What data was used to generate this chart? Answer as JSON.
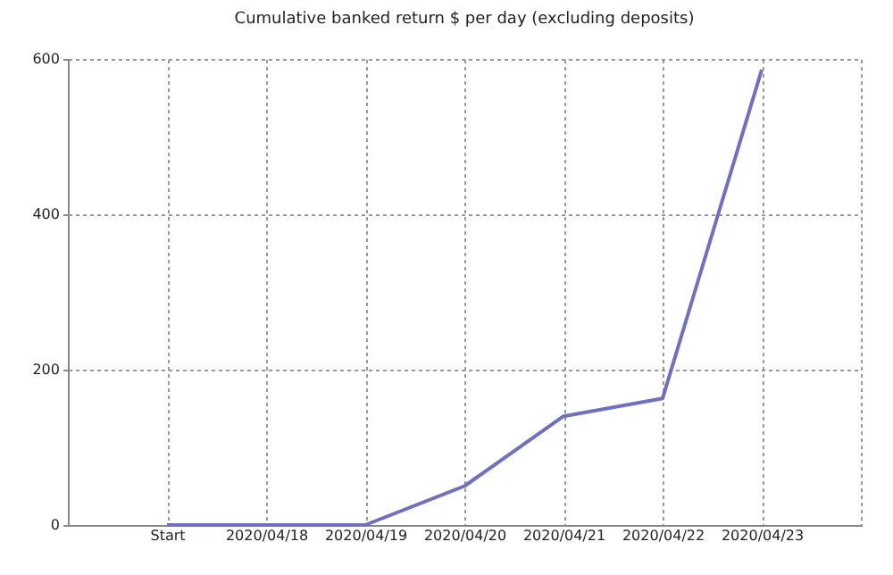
{
  "chart_data": {
    "type": "line",
    "title": "Cumulative banked return $ per day (excluding deposits)",
    "categories": [
      "Start",
      "2020/04/18",
      "2020/04/19",
      "2020/04/20",
      "2020/04/21",
      "2020/04/22",
      "2020/04/23"
    ],
    "series": [
      {
        "color": "#7070c0",
        "values": [
          0,
          0,
          0,
          50,
          140,
          163,
          586
        ]
      }
    ],
    "ylim": [
      0,
      600
    ],
    "yticks": [
      0,
      200,
      400,
      600
    ],
    "grid": true
  }
}
